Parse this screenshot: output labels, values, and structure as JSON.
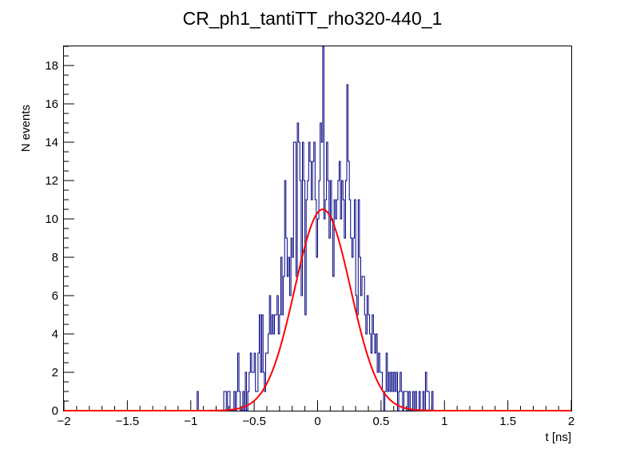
{
  "chart_data": {
    "type": "line",
    "title": "CR_ph1_tantiTT_rho320-440_1",
    "xlabel": "t [ns]",
    "ylabel": "N events",
    "xlim": [
      -2,
      2
    ],
    "ylim": [
      0,
      19
    ],
    "grid": false,
    "x_ticks": [
      -2,
      -1.5,
      -1,
      -0.5,
      0,
      0.5,
      1,
      1.5,
      2
    ],
    "x_tick_labels": [
      "−2",
      "−1.5",
      "−1",
      "−0.5",
      "0",
      "0.5",
      "1",
      "1.5",
      "2"
    ],
    "y_ticks": [
      0,
      2,
      4,
      6,
      8,
      10,
      12,
      14,
      16,
      18
    ],
    "y_tick_labels": [
      "0",
      "2",
      "4",
      "6",
      "8",
      "10",
      "12",
      "14",
      "16",
      "18"
    ],
    "series": [
      {
        "kind": "histogram",
        "color": "#00007f",
        "bin_edges_range": [
          -2,
          2
        ],
        "bin_count": 400,
        "nonzero_bins": [
          [
            -0.95,
            1
          ],
          [
            -0.74,
            1
          ],
          [
            -0.73,
            1
          ],
          [
            -0.72,
            0
          ],
          [
            -0.71,
            1
          ],
          [
            -0.7,
            1
          ],
          [
            -0.66,
            1
          ],
          [
            -0.65,
            0
          ],
          [
            -0.64,
            1
          ],
          [
            -0.63,
            3
          ],
          [
            -0.62,
            1
          ],
          [
            -0.59,
            1
          ],
          [
            -0.57,
            2
          ],
          [
            -0.55,
            1
          ],
          [
            -0.54,
            2
          ],
          [
            -0.53,
            3
          ],
          [
            -0.52,
            2
          ],
          [
            -0.51,
            2
          ],
          [
            -0.5,
            3
          ],
          [
            -0.49,
            1
          ],
          [
            -0.48,
            1
          ],
          [
            -0.47,
            3
          ],
          [
            -0.46,
            5
          ],
          [
            -0.45,
            2
          ],
          [
            -0.44,
            5
          ],
          [
            -0.43,
            2
          ],
          [
            -0.42,
            1
          ],
          [
            -0.41,
            3
          ],
          [
            -0.4,
            3
          ],
          [
            -0.39,
            4
          ],
          [
            -0.38,
            6
          ],
          [
            -0.37,
            4
          ],
          [
            -0.36,
            5
          ],
          [
            -0.35,
            4
          ],
          [
            -0.34,
            5
          ],
          [
            -0.33,
            5
          ],
          [
            -0.32,
            6
          ],
          [
            -0.31,
            4
          ],
          [
            -0.3,
            5
          ],
          [
            -0.29,
            8
          ],
          [
            -0.28,
            5
          ],
          [
            -0.27,
            7
          ],
          [
            -0.26,
            12
          ],
          [
            -0.25,
            9
          ],
          [
            -0.24,
            7
          ],
          [
            -0.23,
            8
          ],
          [
            -0.22,
            6
          ],
          [
            -0.21,
            9
          ],
          [
            -0.2,
            8
          ],
          [
            -0.19,
            14
          ],
          [
            -0.18,
            14
          ],
          [
            -0.17,
            7
          ],
          [
            -0.16,
            15
          ],
          [
            -0.15,
            14
          ],
          [
            -0.14,
            12
          ],
          [
            -0.13,
            6
          ],
          [
            -0.12,
            14
          ],
          [
            -0.11,
            12
          ],
          [
            -0.1,
            5
          ],
          [
            -0.09,
            11
          ],
          [
            -0.08,
            12
          ],
          [
            -0.07,
            14
          ],
          [
            -0.06,
            13
          ],
          [
            -0.05,
            11
          ],
          [
            -0.04,
            13
          ],
          [
            -0.03,
            14
          ],
          [
            -0.02,
            11
          ],
          [
            -0.01,
            8
          ],
          [
            0.0,
            10
          ],
          [
            0.01,
            12
          ],
          [
            0.02,
            15
          ],
          [
            0.03,
            14
          ],
          [
            0.04,
            19
          ],
          [
            0.05,
            10
          ],
          [
            0.06,
            11
          ],
          [
            0.07,
            14
          ],
          [
            0.08,
            12
          ],
          [
            0.09,
            9
          ],
          [
            0.1,
            12
          ],
          [
            0.11,
            10
          ],
          [
            0.12,
            7
          ],
          [
            0.13,
            11
          ],
          [
            0.14,
            10
          ],
          [
            0.15,
            11
          ],
          [
            0.16,
            12
          ],
          [
            0.17,
            13
          ],
          [
            0.18,
            10
          ],
          [
            0.19,
            12
          ],
          [
            0.2,
            11
          ],
          [
            0.21,
            9
          ],
          [
            0.22,
            12
          ],
          [
            0.23,
            17
          ],
          [
            0.24,
            13
          ],
          [
            0.25,
            11
          ],
          [
            0.26,
            9
          ],
          [
            0.27,
            8
          ],
          [
            0.28,
            9
          ],
          [
            0.29,
            11
          ],
          [
            0.3,
            6
          ],
          [
            0.31,
            5
          ],
          [
            0.32,
            11
          ],
          [
            0.33,
            8
          ],
          [
            0.34,
            6
          ],
          [
            0.35,
            7
          ],
          [
            0.36,
            7
          ],
          [
            0.37,
            5
          ],
          [
            0.38,
            4
          ],
          [
            0.39,
            6
          ],
          [
            0.4,
            5
          ],
          [
            0.41,
            4
          ],
          [
            0.42,
            3
          ],
          [
            0.43,
            5
          ],
          [
            0.44,
            4
          ],
          [
            0.45,
            3
          ],
          [
            0.46,
            4
          ],
          [
            0.47,
            2
          ],
          [
            0.48,
            3
          ],
          [
            0.49,
            2
          ],
          [
            0.5,
            2
          ],
          [
            0.51,
            1
          ],
          [
            0.52,
            0
          ],
          [
            0.53,
            1
          ],
          [
            0.54,
            3
          ],
          [
            0.55,
            1
          ],
          [
            0.56,
            2
          ],
          [
            0.57,
            1
          ],
          [
            0.58,
            2
          ],
          [
            0.59,
            1
          ],
          [
            0.6,
            2
          ],
          [
            0.61,
            1
          ],
          [
            0.62,
            2
          ],
          [
            0.63,
            0
          ],
          [
            0.64,
            1
          ],
          [
            0.65,
            2
          ],
          [
            0.66,
            1
          ],
          [
            0.67,
            0
          ],
          [
            0.68,
            1
          ],
          [
            0.69,
            1
          ],
          [
            0.7,
            1
          ],
          [
            0.71,
            0
          ],
          [
            0.72,
            1
          ],
          [
            0.73,
            0
          ],
          [
            0.74,
            0
          ],
          [
            0.75,
            1
          ],
          [
            0.76,
            0
          ],
          [
            0.77,
            1
          ],
          [
            0.78,
            0
          ],
          [
            0.79,
            0
          ],
          [
            0.8,
            1
          ],
          [
            0.81,
            0
          ],
          [
            0.82,
            0
          ],
          [
            0.83,
            1
          ],
          [
            0.84,
            0
          ],
          [
            0.85,
            2
          ],
          [
            0.86,
            1
          ],
          [
            0.87,
            1
          ],
          [
            0.88,
            0
          ],
          [
            0.89,
            0
          ],
          [
            0.9,
            1
          ],
          [
            0.91,
            0
          ],
          [
            0.92,
            0
          ]
        ]
      },
      {
        "kind": "gaussian-fit",
        "color": "#ff0000",
        "amplitude": 10.5,
        "mean": 0.04,
        "sigma": 0.22
      }
    ]
  }
}
